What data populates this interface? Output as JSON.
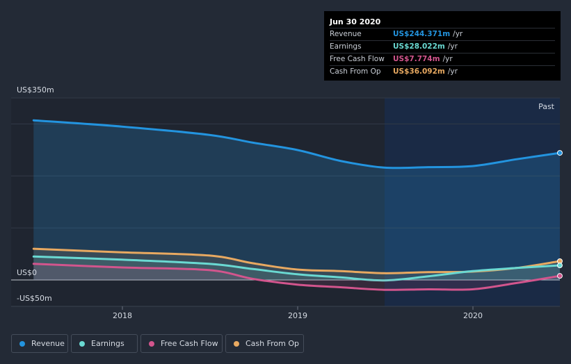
{
  "tooltip": {
    "date": "Jun 30 2020",
    "rows": [
      {
        "label": "Revenue",
        "value": "US$244.371m",
        "unit": "/yr",
        "color": "#2394df"
      },
      {
        "label": "Earnings",
        "value": "US$28.022m",
        "unit": "/yr",
        "color": "#6ad9d2"
      },
      {
        "label": "Free Cash Flow",
        "value": "US$7.774m",
        "unit": "/yr",
        "color": "#d2558d"
      },
      {
        "label": "Cash From Op",
        "value": "US$36.092m",
        "unit": "/yr",
        "color": "#e8a961"
      }
    ]
  },
  "legend": [
    {
      "label": "Revenue",
      "color": "#2394df"
    },
    {
      "label": "Earnings",
      "color": "#6ad9d2"
    },
    {
      "label": "Free Cash Flow",
      "color": "#d2558d"
    },
    {
      "label": "Cash From Op",
      "color": "#e8a961"
    }
  ],
  "past_label": "Past",
  "chart_data": {
    "type": "line",
    "ylim": [
      -50,
      350
    ],
    "xlim": [
      "2017-07-01",
      "2020-07-31"
    ],
    "y_tick_labels": [
      {
        "value": 350,
        "label": "US$350m"
      },
      {
        "value": 0,
        "label": "US$0"
      },
      {
        "value": -50,
        "label": "-US$50m"
      }
    ],
    "x_tick_labels": [
      {
        "value": "2018-01-01",
        "label": "2018"
      },
      {
        "value": "2019-01-01",
        "label": "2019"
      },
      {
        "value": "2020-01-01",
        "label": "2020"
      }
    ],
    "past_region_start": "2019-07-01",
    "legend_position": "bottom-left",
    "series": [
      {
        "name": "Revenue",
        "color": "#2394df",
        "fill": true,
        "points": [
          [
            "2017-06-30",
            307
          ],
          [
            "2017-12-31",
            295
          ],
          [
            "2018-06-30",
            279
          ],
          [
            "2018-09-30",
            264
          ],
          [
            "2018-12-31",
            250
          ],
          [
            "2019-03-31",
            229
          ],
          [
            "2019-06-30",
            216
          ],
          [
            "2019-09-30",
            217
          ],
          [
            "2019-12-31",
            219
          ],
          [
            "2020-03-31",
            232
          ],
          [
            "2020-06-30",
            244.371
          ]
        ]
      },
      {
        "name": "Earnings",
        "color": "#6ad9d2",
        "fill": true,
        "points": [
          [
            "2017-06-30",
            45
          ],
          [
            "2017-12-31",
            39
          ],
          [
            "2018-06-30",
            31
          ],
          [
            "2018-09-30",
            21
          ],
          [
            "2018-12-31",
            11
          ],
          [
            "2019-03-31",
            5
          ],
          [
            "2019-06-30",
            -1
          ],
          [
            "2019-09-30",
            7
          ],
          [
            "2019-12-31",
            17
          ],
          [
            "2020-03-31",
            23
          ],
          [
            "2020-06-30",
            28.022
          ]
        ]
      },
      {
        "name": "Free Cash Flow",
        "color": "#d2558d",
        "fill": true,
        "points": [
          [
            "2017-06-30",
            31
          ],
          [
            "2017-12-31",
            24
          ],
          [
            "2018-06-30",
            19
          ],
          [
            "2018-09-30",
            2
          ],
          [
            "2018-12-31",
            -9
          ],
          [
            "2019-03-31",
            -14
          ],
          [
            "2019-06-30",
            -19
          ],
          [
            "2019-09-30",
            -18
          ],
          [
            "2019-12-31",
            -18
          ],
          [
            "2020-03-31",
            -6
          ],
          [
            "2020-06-30",
            7.774
          ]
        ]
      },
      {
        "name": "Cash From Op",
        "color": "#e8a961",
        "fill": true,
        "points": [
          [
            "2017-06-30",
            60
          ],
          [
            "2017-12-31",
            53
          ],
          [
            "2018-06-30",
            47
          ],
          [
            "2018-09-30",
            32
          ],
          [
            "2018-12-31",
            20
          ],
          [
            "2019-03-31",
            17
          ],
          [
            "2019-06-30",
            13
          ],
          [
            "2019-09-30",
            15
          ],
          [
            "2019-12-31",
            16
          ],
          [
            "2020-03-31",
            23
          ],
          [
            "2020-06-30",
            36.092
          ]
        ]
      }
    ]
  }
}
